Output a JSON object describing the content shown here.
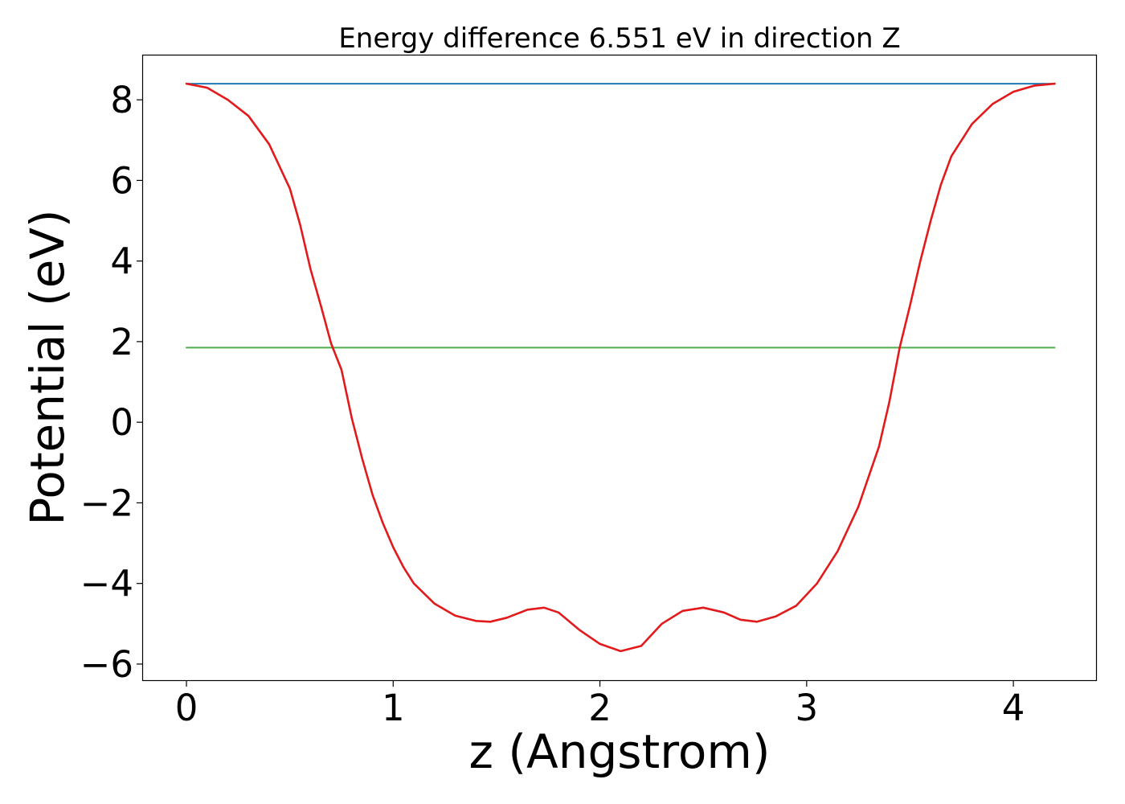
{
  "chart_data": {
    "type": "line",
    "title": "Energy difference 6.551 eV in direction Z",
    "xlabel": "z (Angstrom)",
    "ylabel": "Potential (eV)",
    "xlim": [
      -0.21,
      4.4
    ],
    "ylim": [
      -6.4,
      9.1
    ],
    "xticks": [
      0,
      1,
      2,
      3,
      4
    ],
    "xtick_labels": [
      "0",
      "1",
      "2",
      "3",
      "4"
    ],
    "yticks": [
      -6,
      -4,
      -2,
      0,
      2,
      4,
      6,
      8
    ],
    "ytick_labels": [
      "−6",
      "−4",
      "−2",
      "0",
      "2",
      "4",
      "6",
      "8"
    ],
    "grid": false,
    "legend": null,
    "colors": {
      "potential": "#e31a1c",
      "vacuum_level": "#1f77b4",
      "fermi_level": "#4daf4a"
    },
    "series": [
      {
        "id": "potential",
        "x": [
          0.0,
          0.1,
          0.2,
          0.3,
          0.4,
          0.5,
          0.55,
          0.6,
          0.65,
          0.7,
          0.75,
          0.8,
          0.85,
          0.9,
          0.95,
          1.0,
          1.05,
          1.1,
          1.2,
          1.3,
          1.4,
          1.47,
          1.55,
          1.65,
          1.73,
          1.8,
          1.9,
          2.0,
          2.1,
          2.2,
          2.3,
          2.4,
          2.5,
          2.6,
          2.68,
          2.76,
          2.85,
          2.95,
          3.05,
          3.15,
          3.25,
          3.3,
          3.35,
          3.4,
          3.45,
          3.5,
          3.55,
          3.6,
          3.65,
          3.7,
          3.8,
          3.9,
          4.0,
          4.1,
          4.2
        ],
        "y": [
          8.4,
          8.3,
          8.0,
          7.6,
          6.9,
          5.8,
          4.9,
          3.8,
          2.9,
          1.95,
          1.3,
          0.1,
          -0.9,
          -1.8,
          -2.5,
          -3.1,
          -3.6,
          -4.0,
          -4.5,
          -4.8,
          -4.93,
          -4.95,
          -4.85,
          -4.65,
          -4.6,
          -4.72,
          -5.15,
          -5.5,
          -5.68,
          -5.55,
          -5.0,
          -4.68,
          -4.6,
          -4.72,
          -4.9,
          -4.95,
          -4.82,
          -4.55,
          -4.0,
          -3.2,
          -2.1,
          -1.35,
          -0.6,
          0.5,
          1.85,
          2.9,
          4.0,
          5.0,
          5.9,
          6.6,
          7.4,
          7.9,
          8.2,
          8.35,
          8.4
        ]
      },
      {
        "id": "vacuum_level",
        "x": [
          0.0,
          4.2
        ],
        "y": [
          8.4,
          8.4
        ]
      },
      {
        "id": "fermi_level",
        "x": [
          0.0,
          4.2
        ],
        "y": [
          1.85,
          1.85
        ]
      }
    ]
  }
}
